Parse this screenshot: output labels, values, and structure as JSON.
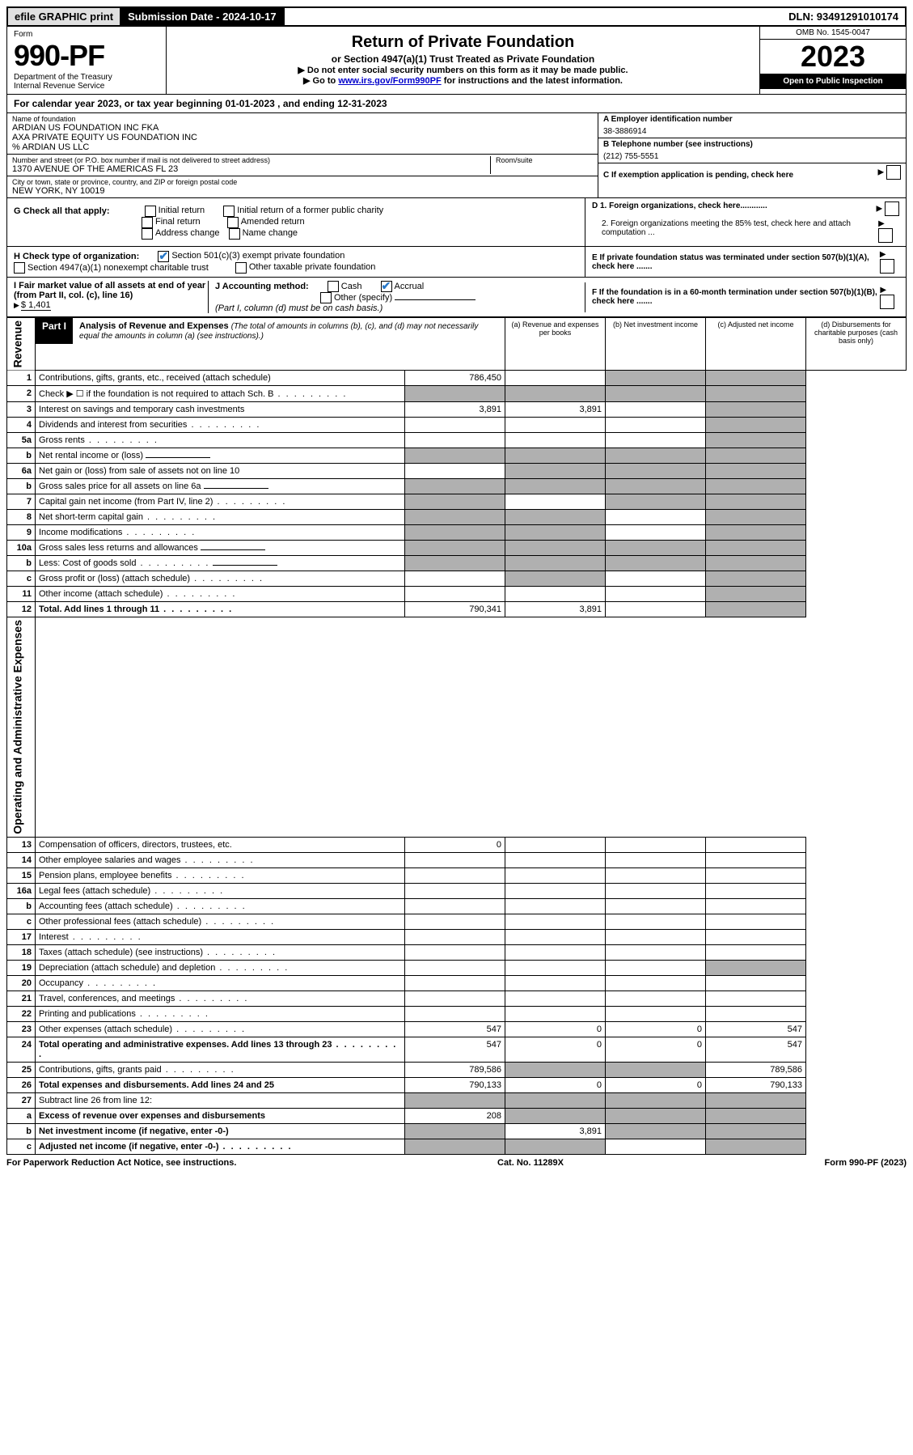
{
  "top": {
    "efile": "efile GRAPHIC print",
    "sub_date_label": "Submission Date - 2024-10-17",
    "dln": "DLN: 93491291010174"
  },
  "header": {
    "form_word": "Form",
    "form_no": "990-PF",
    "dept": "Department of the Treasury",
    "irs": "Internal Revenue Service",
    "title": "Return of Private Foundation",
    "subtitle": "or Section 4947(a)(1) Trust Treated as Private Foundation",
    "instr1": "▶ Do not enter social security numbers on this form as it may be made public.",
    "instr2_pre": "▶ Go to ",
    "instr2_link": "www.irs.gov/Form990PF",
    "instr2_post": " for instructions and the latest information.",
    "omb": "OMB No. 1545-0047",
    "year": "2023",
    "open": "Open to Public Inspection"
  },
  "cal_year": "For calendar year 2023, or tax year beginning 01-01-2023                                                , and ending 12-31-2023",
  "entity": {
    "name_label": "Name of foundation",
    "name1": "ARDIAN US FOUNDATION INC FKA",
    "name2": "AXA PRIVATE EQUITY US FOUNDATION INC",
    "name3": "% ARDIAN US LLC",
    "addr_label": "Number and street (or P.O. box number if mail is not delivered to street address)",
    "addr": "1370 AVENUE OF THE AMERICAS FL 23",
    "room_label": "Room/suite",
    "city_label": "City or town, state or province, country, and ZIP or foreign postal code",
    "city": "NEW YORK, NY  10019",
    "ein_label": "A Employer identification number",
    "ein": "38-3886914",
    "phone_label": "B Telephone number (see instructions)",
    "phone": "(212) 755-5551",
    "c_label": "C If exemption application is pending, check here"
  },
  "checks": {
    "g_label": "G Check all that apply:",
    "g_opts": [
      "Initial return",
      "Initial return of a former public charity",
      "Final return",
      "Amended return",
      "Address change",
      "Name change"
    ],
    "h_label": "H Check type of organization:",
    "h_501c3": "Section 501(c)(3) exempt private foundation",
    "h_4947": "Section 4947(a)(1) nonexempt charitable trust",
    "h_other": "Other taxable private foundation",
    "i_label": "I Fair market value of all assets at end of year (from Part II, col. (c), line 16)",
    "i_val": "$  1,401",
    "j_label": "J Accounting method:",
    "j_cash": "Cash",
    "j_accrual": "Accrual",
    "j_other": "Other (specify)",
    "j_note": "(Part I, column (d) must be on cash basis.)",
    "d1": "D 1. Foreign organizations, check here............",
    "d2": "2. Foreign organizations meeting the 85% test, check here and attach computation ...",
    "e": "E  If private foundation status was terminated under section 507(b)(1)(A), check here .......",
    "f": "F  If the foundation is in a 60-month termination under section 507(b)(1)(B), check here .......",
    "arrow": "▶"
  },
  "part1": {
    "label": "Part I",
    "title": "Analysis of Revenue and Expenses",
    "title_note": "(The total of amounts in columns (b), (c), and (d) may not necessarily equal the amounts in column (a) (see instructions).)",
    "col_a": "(a)   Revenue and expenses per books",
    "col_b": "(b)   Net investment income",
    "col_c": "(c)   Adjusted net income",
    "col_d": "(d)   Disbursements for charitable purposes (cash basis only)"
  },
  "side_labels": {
    "revenue": "Revenue",
    "expenses": "Operating and Administrative Expenses"
  },
  "rows": [
    {
      "n": "1",
      "desc": "Contributions, gifts, grants, etc., received (attach schedule)",
      "a": "786,450",
      "b": "",
      "c": "s",
      "d": "s"
    },
    {
      "n": "2",
      "desc": "Check ▶ ☐ if the foundation is not required to attach Sch. B",
      "a": "s",
      "b": "s",
      "c": "s",
      "d": "s",
      "dots": true
    },
    {
      "n": "3",
      "desc": "Interest on savings and temporary cash investments",
      "a": "3,891",
      "b": "3,891",
      "c": "",
      "d": "s"
    },
    {
      "n": "4",
      "desc": "Dividends and interest from securities",
      "a": "",
      "b": "",
      "c": "",
      "d": "s",
      "dots": true
    },
    {
      "n": "5a",
      "desc": "Gross rents",
      "a": "",
      "b": "",
      "c": "",
      "d": "s",
      "dots": true
    },
    {
      "n": "b",
      "desc": "Net rental income or (loss)",
      "a": "s",
      "b": "s",
      "c": "s",
      "d": "s",
      "inline": true
    },
    {
      "n": "6a",
      "desc": "Net gain or (loss) from sale of assets not on line 10",
      "a": "",
      "b": "s",
      "c": "s",
      "d": "s"
    },
    {
      "n": "b",
      "desc": "Gross sales price for all assets on line 6a",
      "a": "s",
      "b": "s",
      "c": "s",
      "d": "s",
      "inline": true
    },
    {
      "n": "7",
      "desc": "Capital gain net income (from Part IV, line 2)",
      "a": "s",
      "b": "",
      "c": "s",
      "d": "s",
      "dots": true
    },
    {
      "n": "8",
      "desc": "Net short-term capital gain",
      "a": "s",
      "b": "s",
      "c": "",
      "d": "s",
      "dots": true
    },
    {
      "n": "9",
      "desc": "Income modifications",
      "a": "s",
      "b": "s",
      "c": "",
      "d": "s",
      "dots": true
    },
    {
      "n": "10a",
      "desc": "Gross sales less returns and allowances",
      "a": "s",
      "b": "s",
      "c": "s",
      "d": "s",
      "inline": true
    },
    {
      "n": "b",
      "desc": "Less: Cost of goods sold",
      "a": "s",
      "b": "s",
      "c": "s",
      "d": "s",
      "inline": true,
      "dots": true
    },
    {
      "n": "c",
      "desc": "Gross profit or (loss) (attach schedule)",
      "a": "",
      "b": "s",
      "c": "",
      "d": "s",
      "dots": true
    },
    {
      "n": "11",
      "desc": "Other income (attach schedule)",
      "a": "",
      "b": "",
      "c": "",
      "d": "s",
      "dots": true
    },
    {
      "n": "12",
      "desc": "Total. Add lines 1 through 11",
      "a": "790,341",
      "b": "3,891",
      "c": "",
      "d": "s",
      "bold": true,
      "dots": true
    }
  ],
  "exp_rows": [
    {
      "n": "13",
      "desc": "Compensation of officers, directors, trustees, etc.",
      "a": "0",
      "b": "",
      "c": "",
      "d": ""
    },
    {
      "n": "14",
      "desc": "Other employee salaries and wages",
      "a": "",
      "b": "",
      "c": "",
      "d": "",
      "dots": true
    },
    {
      "n": "15",
      "desc": "Pension plans, employee benefits",
      "a": "",
      "b": "",
      "c": "",
      "d": "",
      "dots": true
    },
    {
      "n": "16a",
      "desc": "Legal fees (attach schedule)",
      "a": "",
      "b": "",
      "c": "",
      "d": "",
      "dots": true
    },
    {
      "n": "b",
      "desc": "Accounting fees (attach schedule)",
      "a": "",
      "b": "",
      "c": "",
      "d": "",
      "dots": true
    },
    {
      "n": "c",
      "desc": "Other professional fees (attach schedule)",
      "a": "",
      "b": "",
      "c": "",
      "d": "",
      "dots": true
    },
    {
      "n": "17",
      "desc": "Interest",
      "a": "",
      "b": "",
      "c": "",
      "d": "",
      "dots": true
    },
    {
      "n": "18",
      "desc": "Taxes (attach schedule) (see instructions)",
      "a": "",
      "b": "",
      "c": "",
      "d": "",
      "dots": true
    },
    {
      "n": "19",
      "desc": "Depreciation (attach schedule) and depletion",
      "a": "",
      "b": "",
      "c": "",
      "d": "s",
      "dots": true
    },
    {
      "n": "20",
      "desc": "Occupancy",
      "a": "",
      "b": "",
      "c": "",
      "d": "",
      "dots": true
    },
    {
      "n": "21",
      "desc": "Travel, conferences, and meetings",
      "a": "",
      "b": "",
      "c": "",
      "d": "",
      "dots": true
    },
    {
      "n": "22",
      "desc": "Printing and publications",
      "a": "",
      "b": "",
      "c": "",
      "d": "",
      "dots": true
    },
    {
      "n": "23",
      "desc": "Other expenses (attach schedule)",
      "a": "547",
      "b": "0",
      "c": "0",
      "d": "547",
      "dots": true
    },
    {
      "n": "24",
      "desc": "Total operating and administrative expenses. Add lines 13 through 23",
      "a": "547",
      "b": "0",
      "c": "0",
      "d": "547",
      "bold": true,
      "dots": true
    },
    {
      "n": "25",
      "desc": "Contributions, gifts, grants paid",
      "a": "789,586",
      "b": "s",
      "c": "s",
      "d": "789,586",
      "dots": true
    },
    {
      "n": "26",
      "desc": "Total expenses and disbursements. Add lines 24 and 25",
      "a": "790,133",
      "b": "0",
      "c": "0",
      "d": "790,133",
      "bold": true
    },
    {
      "n": "27",
      "desc": "Subtract line 26 from line 12:",
      "a": "s",
      "b": "s",
      "c": "s",
      "d": "s"
    },
    {
      "n": "a",
      "desc": "Excess of revenue over expenses and disbursements",
      "a": "208",
      "b": "s",
      "c": "s",
      "d": "s",
      "bold": true
    },
    {
      "n": "b",
      "desc": "Net investment income (if negative, enter -0-)",
      "a": "s",
      "b": "3,891",
      "c": "s",
      "d": "s",
      "bold": true
    },
    {
      "n": "c",
      "desc": "Adjusted net income (if negative, enter -0-)",
      "a": "s",
      "b": "s",
      "c": "",
      "d": "s",
      "bold": true,
      "dots": true
    }
  ],
  "footer": {
    "left": "For Paperwork Reduction Act Notice, see instructions.",
    "mid": "Cat. No. 11289X",
    "right": "Form 990-PF (2023)"
  },
  "colors": {
    "link": "#0000cc",
    "check": "#2878c8",
    "shade": "#b0b0b0"
  }
}
